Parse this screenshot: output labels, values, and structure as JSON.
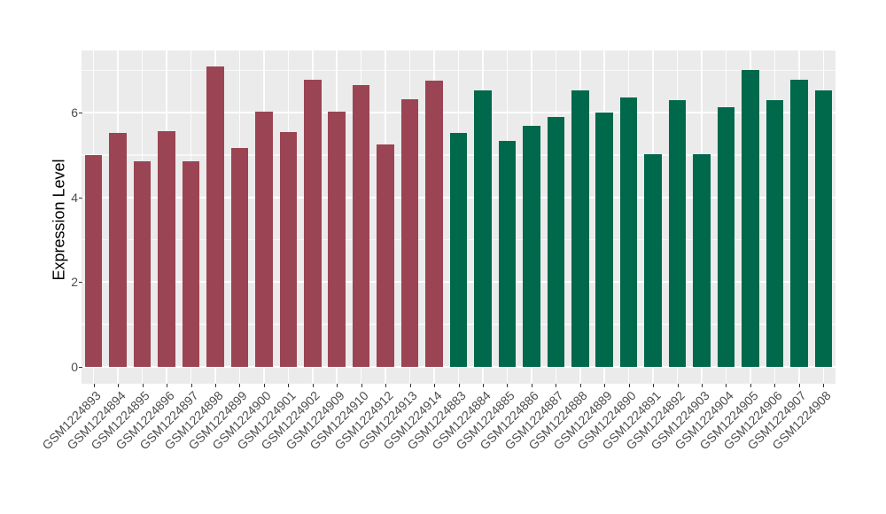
{
  "chart_data": {
    "type": "bar",
    "title": "",
    "xlabel": "",
    "ylabel": "Expression Level",
    "ylim": [
      0,
      7.47
    ],
    "yticks": [
      0,
      2,
      4,
      6
    ],
    "y_minor_gridlines": [
      1,
      3,
      5,
      7
    ],
    "grid": "white major + faint minor on grey panel, vertical gridline per category",
    "legend_position": "none",
    "categories": [
      "GSM1224893",
      "GSM1224894",
      "GSM1224895",
      "GSM1224896",
      "GSM1224897",
      "GSM1224898",
      "GSM1224899",
      "GSM1224900",
      "GSM1224901",
      "GSM1224902",
      "GSM1224909",
      "GSM1224910",
      "GSM1224912",
      "GSM1224913",
      "GSM1224914",
      "GSM1224883",
      "GSM1224884",
      "GSM1224885",
      "GSM1224886",
      "GSM1224887",
      "GSM1224888",
      "GSM1224889",
      "GSM1224890",
      "GSM1224891",
      "GSM1224892",
      "GSM1224903",
      "GSM1224904",
      "GSM1224905",
      "GSM1224906",
      "GSM1224907",
      "GSM1224908"
    ],
    "values": [
      5.0,
      5.53,
      4.85,
      5.57,
      4.85,
      7.1,
      5.17,
      6.02,
      5.54,
      6.77,
      6.02,
      6.65,
      5.25,
      6.32,
      6.75,
      5.53,
      6.52,
      5.33,
      5.7,
      5.89,
      6.52,
      6.0,
      6.35,
      5.02,
      6.3,
      5.02,
      6.13,
      7.0,
      6.29,
      6.78,
      6.52
    ],
    "group_by_index": [
      "maroon",
      "maroon",
      "maroon",
      "maroon",
      "maroon",
      "maroon",
      "maroon",
      "maroon",
      "maroon",
      "maroon",
      "maroon",
      "maroon",
      "maroon",
      "maroon",
      "maroon",
      "green",
      "green",
      "green",
      "green",
      "green",
      "green",
      "green",
      "green",
      "green",
      "green",
      "green",
      "green",
      "green",
      "green",
      "green",
      "green"
    ],
    "group_colors": {
      "maroon": "#9B4453",
      "green": "#00684B"
    }
  },
  "colors": {
    "panel_background": "#EBEBEB",
    "grid_major": "#FFFFFF",
    "axis_text": "#4D4D4D",
    "axis_title": "#000000",
    "tick_mark": "#333333",
    "page_background": "#FFFFFF"
  }
}
